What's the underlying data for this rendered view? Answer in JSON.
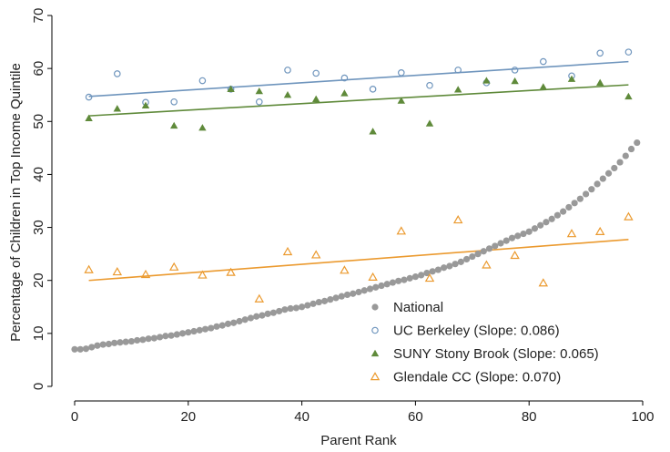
{
  "chart_data": {
    "type": "scatter",
    "xlabel": "Parent Rank",
    "ylabel": "Percentage of Children in Top Income Quintile",
    "xlim": [
      0,
      100
    ],
    "xticks": [
      0,
      20,
      40,
      60,
      80,
      100
    ],
    "ylim": [
      0,
      70
    ],
    "yticks": [
      0,
      10,
      20,
      30,
      40,
      50,
      60,
      70
    ],
    "legend": "bottom-right",
    "series": [
      {
        "name": "National",
        "color": "#999999",
        "marker": "circle",
        "fit": false,
        "x": [
          0,
          1,
          2,
          3,
          4,
          5,
          6,
          7,
          8,
          9,
          10,
          11,
          12,
          13,
          14,
          15,
          16,
          17,
          18,
          19,
          20,
          21,
          22,
          23,
          24,
          25,
          26,
          27,
          28,
          29,
          30,
          31,
          32,
          33,
          34,
          35,
          36,
          37,
          38,
          39,
          40,
          41,
          42,
          43,
          44,
          45,
          46,
          47,
          48,
          49,
          50,
          51,
          52,
          53,
          54,
          55,
          56,
          57,
          58,
          59,
          60,
          61,
          62,
          63,
          64,
          65,
          66,
          67,
          68,
          69,
          70,
          71,
          72,
          73,
          74,
          75,
          76,
          77,
          78,
          79,
          80,
          81,
          82,
          83,
          84,
          85,
          86,
          87,
          88,
          89,
          90,
          91,
          92,
          93,
          94,
          95,
          96,
          97,
          98,
          99
        ],
        "values": [
          7.0,
          7.0,
          7.1,
          7.4,
          7.7,
          7.9,
          8.0,
          8.2,
          8.3,
          8.4,
          8.5,
          8.7,
          8.8,
          9.0,
          9.1,
          9.3,
          9.5,
          9.6,
          9.8,
          10.0,
          10.2,
          10.4,
          10.6,
          10.8,
          11.0,
          11.3,
          11.5,
          11.8,
          12.0,
          12.3,
          12.6,
          12.9,
          13.2,
          13.4,
          13.7,
          13.9,
          14.2,
          14.5,
          14.7,
          14.8,
          15.0,
          15.3,
          15.6,
          15.9,
          16.1,
          16.4,
          16.7,
          17.0,
          17.3,
          17.5,
          17.8,
          18.1,
          18.4,
          18.7,
          19.0,
          19.3,
          19.6,
          19.9,
          20.1,
          20.4,
          20.7,
          21.0,
          21.4,
          21.7,
          22.0,
          22.4,
          22.7,
          23.1,
          23.5,
          24.0,
          24.5,
          25.0,
          25.5,
          26.0,
          26.5,
          27.0,
          27.5,
          28.0,
          28.4,
          28.8,
          29.2,
          29.8,
          30.4,
          31.0,
          31.6,
          32.3,
          33.0,
          33.8,
          34.6,
          35.4,
          36.3,
          37.2,
          38.2,
          39.2,
          40.2,
          41.2,
          42.3,
          43.5,
          44.8,
          46.0
        ]
      },
      {
        "name": "UC Berkeley (Slope: 0.086)",
        "color": "#6f95bd",
        "marker": "circle-open",
        "fit": true,
        "x": [
          2.5,
          7.5,
          12.5,
          17.5,
          22.5,
          27.5,
          32.5,
          37.5,
          42.5,
          47.5,
          52.5,
          57.5,
          62.5,
          67.5,
          72.5,
          77.5,
          82.5,
          87.5,
          92.5,
          97.5
        ],
        "values": [
          54.6,
          59.0,
          53.6,
          53.7,
          57.7,
          56.1,
          53.7,
          59.7,
          59.1,
          58.2,
          56.1,
          59.2,
          56.8,
          59.7,
          57.3,
          59.7,
          61.3,
          58.6,
          62.9,
          63.1
        ]
      },
      {
        "name": "SUNY Stony Brook (Slope: 0.065)",
        "color": "#5f8a3a",
        "marker": "triangle",
        "fit": true,
        "x": [
          2.5,
          7.5,
          12.5,
          17.5,
          22.5,
          27.5,
          32.5,
          37.5,
          42.5,
          47.5,
          52.5,
          57.5,
          62.5,
          67.5,
          72.5,
          77.5,
          82.5,
          87.5,
          92.5,
          97.5
        ],
        "values": [
          50.6,
          52.4,
          53.0,
          49.2,
          48.8,
          56.1,
          55.7,
          55.0,
          54.2,
          55.3,
          48.1,
          53.9,
          49.6,
          56.0,
          57.7,
          57.6,
          56.5,
          58.0,
          57.3,
          54.7
        ]
      },
      {
        "name": "Glendale CC (Slope: 0.070)",
        "color": "#eb9a2f",
        "marker": "triangle-open",
        "fit": true,
        "x": [
          2.5,
          7.5,
          12.5,
          17.5,
          22.5,
          27.5,
          32.5,
          37.5,
          42.5,
          47.5,
          52.5,
          57.5,
          62.5,
          67.5,
          72.5,
          77.5,
          82.5,
          87.5,
          92.5,
          97.5
        ],
        "values": [
          22.0,
          21.6,
          21.1,
          22.5,
          21.0,
          21.5,
          16.5,
          25.4,
          24.8,
          21.9,
          20.6,
          29.3,
          20.4,
          31.4,
          22.9,
          24.7,
          19.5,
          28.8,
          29.2,
          32.0
        ]
      }
    ]
  }
}
